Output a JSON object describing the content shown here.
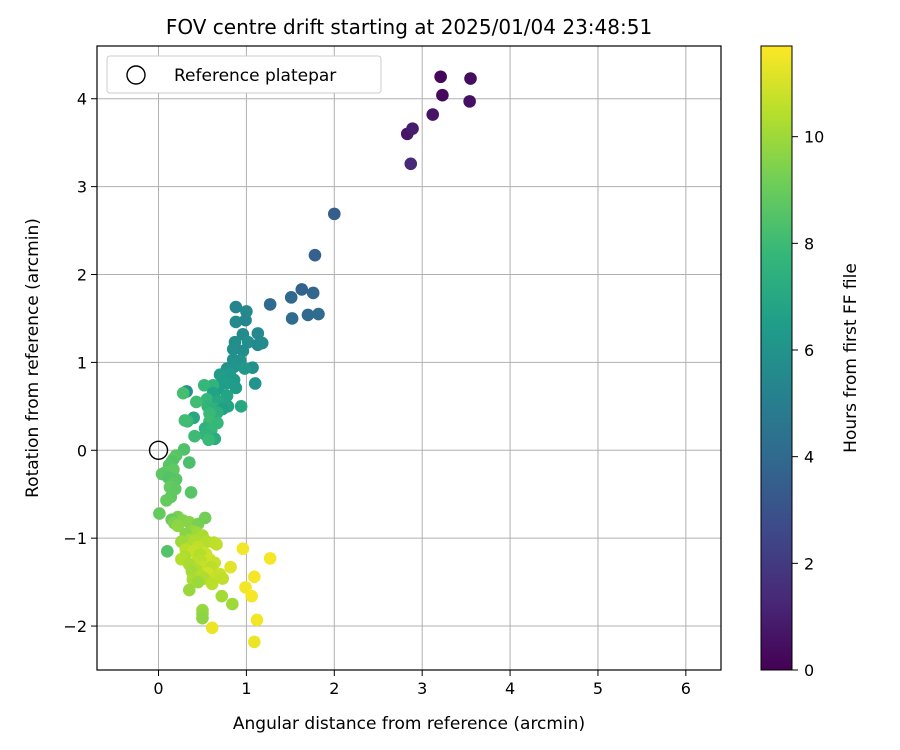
{
  "chart_data": {
    "type": "scatter",
    "title": "FOV centre drift starting at 2025/01/04 23:48:51",
    "xlabel": "Angular distance from reference (arcmin)",
    "ylabel": "Rotation from reference (arcmin)",
    "xlim": [
      -0.7,
      6.4
    ],
    "ylim": [
      -2.5,
      4.6
    ],
    "xticks": [
      "0",
      "1",
      "2",
      "3",
      "4",
      "5",
      "6"
    ],
    "yticks": [
      "−2",
      "−1",
      "0",
      "1",
      "2",
      "3",
      "4"
    ],
    "grid": true,
    "legend": {
      "placement": "top-left",
      "entries": [
        "Reference platepar"
      ]
    },
    "reference_point": {
      "x": 0,
      "y": 0,
      "marker": "open-circle"
    },
    "colorbar": {
      "label": "Hours from first FF file",
      "colormap": "viridis",
      "range": [
        0,
        11.7
      ],
      "ticks": [
        "0",
        "2",
        "4",
        "6",
        "8",
        "10"
      ]
    },
    "points": [
      [
        3.21,
        4.25,
        0.2
      ],
      [
        3.55,
        4.23,
        0.4
      ],
      [
        3.23,
        4.04,
        0.3
      ],
      [
        3.54,
        3.97,
        0.5
      ],
      [
        3.12,
        3.82,
        0.6
      ],
      [
        2.83,
        3.6,
        0.7
      ],
      [
        2.89,
        3.66,
        0.9
      ],
      [
        2.87,
        3.26,
        1.3
      ],
      [
        2.0,
        2.69,
        3.5
      ],
      [
        1.78,
        2.22,
        3.6
      ],
      [
        1.63,
        1.83,
        3.7
      ],
      [
        1.76,
        1.79,
        3.8
      ],
      [
        1.51,
        1.74,
        3.9
      ],
      [
        1.27,
        1.66,
        4.0
      ],
      [
        1.7,
        1.54,
        4.0
      ],
      [
        1.82,
        1.55,
        4.1
      ],
      [
        1.52,
        1.5,
        4.1
      ],
      [
        0.88,
        1.63,
        5.3
      ],
      [
        1.0,
        1.58,
        5.5
      ],
      [
        0.88,
        1.46,
        5.6
      ],
      [
        0.99,
        1.48,
        5.4
      ],
      [
        1.13,
        1.33,
        5.5
      ],
      [
        0.96,
        1.32,
        5.6
      ],
      [
        0.87,
        1.23,
        5.7
      ],
      [
        1.02,
        1.23,
        5.8
      ],
      [
        1.13,
        1.2,
        5.5
      ],
      [
        1.18,
        1.22,
        5.6
      ],
      [
        0.85,
        1.15,
        5.8
      ],
      [
        0.96,
        1.13,
        5.7
      ],
      [
        0.85,
        1.03,
        5.9
      ],
      [
        0.93,
        1.02,
        6.0
      ],
      [
        0.86,
        0.95,
        6.1
      ],
      [
        0.78,
        0.93,
        6.0
      ],
      [
        1.07,
        0.94,
        5.9
      ],
      [
        0.98,
        0.93,
        6.2
      ],
      [
        0.81,
        0.87,
        6.3
      ],
      [
        0.7,
        0.86,
        6.4
      ],
      [
        0.73,
        0.79,
        6.4
      ],
      [
        0.86,
        0.8,
        6.3
      ],
      [
        0.77,
        0.76,
        6.5
      ],
      [
        0.68,
        0.7,
        6.5
      ],
      [
        0.88,
        0.71,
        6.4
      ],
      [
        1.1,
        0.76,
        6.1
      ],
      [
        0.62,
        0.74,
        7.6
      ],
      [
        0.52,
        0.74,
        7.8
      ],
      [
        0.32,
        0.67,
        6.0
      ],
      [
        0.28,
        0.65,
        8.2
      ],
      [
        0.62,
        0.65,
        6.7
      ],
      [
        0.78,
        0.62,
        6.8
      ],
      [
        0.55,
        0.58,
        7.8
      ],
      [
        0.43,
        0.55,
        8.1
      ],
      [
        0.68,
        0.56,
        7.0
      ],
      [
        0.79,
        0.5,
        6.8
      ],
      [
        0.94,
        0.5,
        7.0
      ],
      [
        0.56,
        0.5,
        7.6
      ],
      [
        0.64,
        0.47,
        7.4
      ],
      [
        0.73,
        0.47,
        6.6
      ],
      [
        0.67,
        0.43,
        7.4
      ],
      [
        0.58,
        0.42,
        7.9
      ],
      [
        0.4,
        0.37,
        7.0
      ],
      [
        0.33,
        0.33,
        7.9
      ],
      [
        0.3,
        0.34,
        8.1
      ],
      [
        0.58,
        0.33,
        8.0
      ],
      [
        0.67,
        0.31,
        7.8
      ],
      [
        0.53,
        0.25,
        7.5
      ],
      [
        0.6,
        0.23,
        7.8
      ],
      [
        0.53,
        0.18,
        7.6
      ],
      [
        0.41,
        0.16,
        8.0
      ],
      [
        0.64,
        0.13,
        7.3
      ],
      [
        0.57,
        0.12,
        7.9
      ],
      [
        0.29,
        0.01,
        8.4
      ],
      [
        0.2,
        -0.06,
        8.6
      ],
      [
        0.17,
        -0.1,
        8.7
      ],
      [
        0.15,
        -0.13,
        8.5
      ],
      [
        0.35,
        -0.14,
        8.3
      ],
      [
        0.12,
        -0.17,
        8.6
      ],
      [
        0.08,
        -0.25,
        8.8
      ],
      [
        0.04,
        -0.27,
        8.7
      ],
      [
        0.17,
        -0.22,
        8.8
      ],
      [
        0.11,
        -0.31,
        8.5
      ],
      [
        0.2,
        -0.33,
        8.6
      ],
      [
        0.17,
        -0.38,
        8.7
      ],
      [
        0.13,
        -0.42,
        8.9
      ],
      [
        0.19,
        -0.44,
        8.8
      ],
      [
        0.37,
        -0.48,
        8.6
      ],
      [
        0.14,
        -0.53,
        8.8
      ],
      [
        0.09,
        -0.57,
        8.9
      ],
      [
        0.01,
        -0.72,
        8.9
      ],
      [
        0.22,
        -0.76,
        9.3
      ],
      [
        0.15,
        -0.79,
        9.0
      ],
      [
        0.18,
        -0.83,
        9.4
      ],
      [
        0.28,
        -0.8,
        9.5
      ],
      [
        0.35,
        -0.82,
        9.6
      ],
      [
        0.22,
        -0.86,
        9.7
      ],
      [
        0.45,
        -0.84,
        9.3
      ],
      [
        0.39,
        -0.92,
        9.8
      ],
      [
        0.53,
        -0.77,
        9.2
      ],
      [
        0.44,
        -0.94,
        10.0
      ],
      [
        0.31,
        -0.95,
        9.6
      ],
      [
        0.5,
        -0.97,
        10.2
      ],
      [
        0.36,
        -1.02,
        10.1
      ],
      [
        0.42,
        -1.03,
        10.3
      ],
      [
        0.26,
        -1.04,
        10.0
      ],
      [
        0.55,
        -1.04,
        10.4
      ],
      [
        0.63,
        -1.05,
        10.5
      ],
      [
        0.66,
        -1.07,
        10.6
      ],
      [
        0.38,
        -1.09,
        10.3
      ],
      [
        0.45,
        -1.1,
        10.6
      ],
      [
        0.31,
        -1.13,
        10.5
      ],
      [
        0.1,
        -1.15,
        8.5
      ],
      [
        0.54,
        -1.18,
        10.8
      ],
      [
        0.4,
        -1.15,
        10.7
      ],
      [
        0.47,
        -1.19,
        10.4
      ],
      [
        0.3,
        -1.21,
        10.3
      ],
      [
        0.26,
        -1.24,
        10.4
      ],
      [
        0.58,
        -1.24,
        10.9
      ],
      [
        0.48,
        -1.26,
        10.5
      ],
      [
        0.64,
        -1.28,
        10.8
      ],
      [
        0.4,
        -1.29,
        10.6
      ],
      [
        0.35,
        -1.3,
        10.2
      ],
      [
        0.5,
        -1.33,
        10.7
      ],
      [
        0.6,
        -1.33,
        10.5
      ],
      [
        0.43,
        -1.36,
        10.3
      ],
      [
        0.38,
        -1.38,
        10.1
      ],
      [
        0.56,
        -1.4,
        10.9
      ],
      [
        0.7,
        -1.41,
        10.8
      ],
      [
        0.48,
        -1.43,
        10.4
      ],
      [
        0.66,
        -1.44,
        10.7
      ],
      [
        0.52,
        -1.46,
        10.3
      ],
      [
        0.39,
        -1.47,
        10.2
      ],
      [
        0.45,
        -1.5,
        10.0
      ],
      [
        0.73,
        -1.46,
        10.6
      ],
      [
        0.61,
        -1.52,
        10.5
      ],
      [
        0.35,
        -1.59,
        9.9
      ],
      [
        0.72,
        -1.66,
        10.1
      ],
      [
        0.84,
        -1.75,
        10.0
      ],
      [
        0.5,
        -1.82,
        9.9
      ],
      [
        0.5,
        -1.86,
        9.8
      ],
      [
        0.5,
        -1.91,
        9.7
      ],
      [
        0.61,
        -2.02,
        11.4
      ],
      [
        0.96,
        -1.12,
        11.5
      ],
      [
        1.27,
        -1.23,
        11.6
      ],
      [
        0.82,
        -1.33,
        11.2
      ],
      [
        1.09,
        -1.44,
        11.6
      ],
      [
        0.99,
        -1.56,
        11.5
      ],
      [
        1.06,
        -1.66,
        11.6
      ],
      [
        1.12,
        -1.93,
        11.5
      ],
      [
        1.09,
        -2.18,
        11.4
      ]
    ]
  }
}
